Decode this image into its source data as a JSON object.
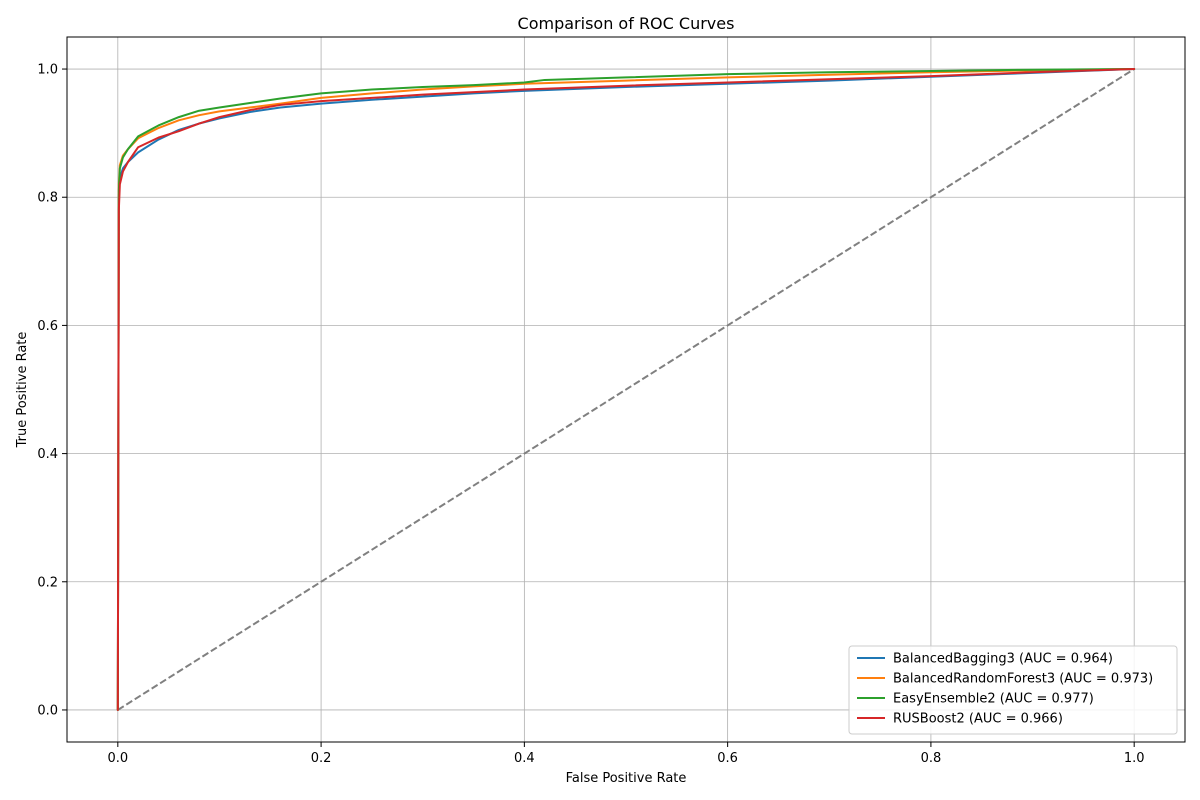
{
  "chart_data": {
    "type": "line",
    "title": "Comparison of ROC Curves",
    "xlabel": "False Positive Rate",
    "ylabel": "True Positive Rate",
    "xlim": [
      -0.05,
      1.05
    ],
    "ylim": [
      -0.05,
      1.05
    ],
    "xticks": [
      "0.0",
      "0.2",
      "0.4",
      "0.6",
      "0.8",
      "1.0"
    ],
    "yticks": [
      "0.0",
      "0.2",
      "0.4",
      "0.6",
      "0.8",
      "1.0"
    ],
    "grid": true,
    "legend_position": "bottom-right",
    "series": [
      {
        "name": "BalancedBagging3 (AUC = 0.964)",
        "color": "#1f77b4",
        "x": [
          0,
          0.001,
          0.002,
          0.005,
          0.01,
          0.02,
          0.04,
          0.06,
          0.08,
          0.1,
          0.13,
          0.16,
          0.2,
          0.25,
          0.3,
          0.35,
          0.4,
          0.5,
          0.6,
          0.7,
          0.8,
          0.9,
          1.0
        ],
        "y": [
          0,
          0.8,
          0.83,
          0.845,
          0.855,
          0.87,
          0.89,
          0.905,
          0.915,
          0.923,
          0.933,
          0.94,
          0.946,
          0.952,
          0.957,
          0.962,
          0.966,
          0.972,
          0.977,
          0.982,
          0.988,
          0.994,
          1.0
        ]
      },
      {
        "name": "BalancedRandomForest3 (AUC = 0.973)",
        "color": "#ff7f0e",
        "x": [
          0,
          0.001,
          0.002,
          0.005,
          0.01,
          0.02,
          0.04,
          0.06,
          0.08,
          0.1,
          0.13,
          0.16,
          0.2,
          0.25,
          0.3,
          0.35,
          0.4,
          0.5,
          0.6,
          0.7,
          0.8,
          0.9,
          1.0
        ],
        "y": [
          0,
          0.82,
          0.85,
          0.865,
          0.875,
          0.892,
          0.908,
          0.92,
          0.928,
          0.934,
          0.94,
          0.946,
          0.955,
          0.962,
          0.968,
          0.973,
          0.977,
          0.982,
          0.987,
          0.991,
          0.995,
          0.998,
          1.0
        ]
      },
      {
        "name": "EasyEnsemble2 (AUC = 0.977)",
        "color": "#2ca02c",
        "x": [
          0,
          0.001,
          0.002,
          0.005,
          0.01,
          0.02,
          0.04,
          0.06,
          0.08,
          0.1,
          0.13,
          0.16,
          0.2,
          0.25,
          0.3,
          0.35,
          0.4,
          0.42,
          0.5,
          0.6,
          0.7,
          0.8,
          0.9,
          1.0
        ],
        "y": [
          0,
          0.81,
          0.845,
          0.862,
          0.875,
          0.895,
          0.912,
          0.925,
          0.935,
          0.94,
          0.947,
          0.954,
          0.962,
          0.968,
          0.972,
          0.975,
          0.979,
          0.983,
          0.987,
          0.992,
          0.995,
          0.997,
          0.999,
          1.0
        ]
      },
      {
        "name": "RUSBoost2 (AUC = 0.966)",
        "color": "#d62728",
        "x": [
          0,
          0.001,
          0.002,
          0.005,
          0.01,
          0.02,
          0.04,
          0.06,
          0.08,
          0.1,
          0.13,
          0.16,
          0.2,
          0.25,
          0.3,
          0.35,
          0.4,
          0.5,
          0.6,
          0.7,
          0.8,
          0.9,
          1.0
        ],
        "y": [
          0,
          0.78,
          0.82,
          0.84,
          0.855,
          0.878,
          0.893,
          0.903,
          0.915,
          0.925,
          0.936,
          0.944,
          0.95,
          0.955,
          0.96,
          0.964,
          0.968,
          0.974,
          0.979,
          0.984,
          0.989,
          0.995,
          1.0
        ]
      }
    ],
    "reference_line": {
      "x": [
        0,
        1
      ],
      "y": [
        0,
        1
      ],
      "color": "#808080",
      "style": "dashed"
    }
  }
}
